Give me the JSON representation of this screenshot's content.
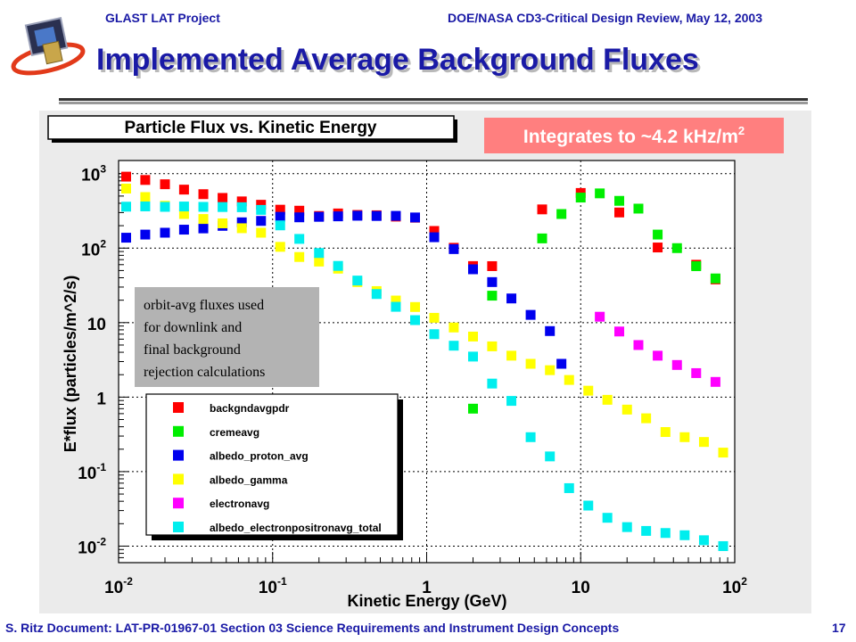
{
  "header": {
    "left": "GLAST LAT Project",
    "right": "DOE/NASA CD3-Critical Design Review, May 12, 2003"
  },
  "slide_title": "Implemented Average Background Fluxes",
  "footer": {
    "left": "S. Ritz  Document: LAT-PR-01967-01   Section 03 Science Requirements and Instrument Design Concepts",
    "page": "17"
  },
  "colors": {
    "title_blue": "#1a1aa6",
    "callout_bg": "#ff7f7f",
    "callout_text": "#ffffff",
    "note_bg": "#b3b3b3",
    "frame_bg": "#ebebeb"
  },
  "callout": {
    "text": "Integrates to ~4.2 kHz/m",
    "superscript": "2"
  },
  "note": {
    "lines": [
      "orbit-avg fluxes used",
      "for downlink and",
      "final background",
      "rejection calculations"
    ]
  },
  "chart_data": {
    "type": "scatter",
    "title": "Particle Flux vs. Kinetic Energy",
    "xlabel": "Kinetic Energy (GeV)",
    "ylabel": "E*flux (particles/m^2/s)",
    "x_scale": "log",
    "y_scale": "log",
    "xlim": [
      0.01,
      100
    ],
    "ylim": [
      0.006,
      1500
    ],
    "grid": "dashed, at decades",
    "legend_position": "bottom-left",
    "x_ticks": [
      {
        "value": 0.01,
        "base": "10",
        "exp": "-2"
      },
      {
        "value": 0.1,
        "base": "10",
        "exp": "-1"
      },
      {
        "value": 1,
        "base": "1",
        "exp": ""
      },
      {
        "value": 10,
        "base": "10",
        "exp": ""
      },
      {
        "value": 100,
        "base": "10",
        "exp": "2"
      }
    ],
    "y_ticks": [
      {
        "value": 0.01,
        "base": "10",
        "exp": "-2"
      },
      {
        "value": 0.1,
        "base": "10",
        "exp": "-1"
      },
      {
        "value": 1,
        "base": "1",
        "exp": ""
      },
      {
        "value": 10,
        "base": "10",
        "exp": ""
      },
      {
        "value": 100,
        "base": "10",
        "exp": "2"
      },
      {
        "value": 1000,
        "base": "10",
        "exp": "3"
      }
    ],
    "series": [
      {
        "name": "backgndavgpdr",
        "color": "#ff0000",
        "points": [
          [
            0.0112,
            911
          ],
          [
            0.0149,
            822
          ],
          [
            0.02,
            720
          ],
          [
            0.0266,
            610
          ],
          [
            0.0355,
            530
          ],
          [
            0.0473,
            472
          ],
          [
            0.0631,
            424
          ],
          [
            0.0841,
            382
          ],
          [
            0.112,
            328
          ],
          [
            0.149,
            318
          ],
          [
            0.2,
            270
          ],
          [
            0.266,
            292
          ],
          [
            0.355,
            279
          ],
          [
            0.473,
            276
          ],
          [
            0.631,
            265
          ],
          [
            0.841,
            256
          ],
          [
            1.12,
            170
          ],
          [
            1.5,
            101
          ],
          [
            2.0,
            57.4
          ],
          [
            2.66,
            57.3
          ],
          [
            5.62,
            331
          ],
          [
            10,
            550
          ],
          [
            17.8,
            301
          ],
          [
            31.6,
            102
          ],
          [
            56.2,
            59.8
          ],
          [
            75,
            38
          ]
        ]
      },
      {
        "name": "cremeavg",
        "color": "#00ee00",
        "points": [
          [
            2.0,
            0.7
          ],
          [
            2.66,
            23
          ],
          [
            5.62,
            135
          ],
          [
            7.5,
            287
          ],
          [
            10,
            477
          ],
          [
            13.3,
            543
          ],
          [
            17.8,
            431
          ],
          [
            23.7,
            339
          ],
          [
            31.6,
            152
          ],
          [
            42.2,
            100
          ],
          [
            56.2,
            57.2
          ],
          [
            75,
            39.2
          ]
        ]
      },
      {
        "name": "albedo_proton_avg",
        "color": "#0000ee",
        "points": [
          [
            0.0112,
            138
          ],
          [
            0.0149,
            152
          ],
          [
            0.02,
            161
          ],
          [
            0.0266,
            177
          ],
          [
            0.0355,
            184
          ],
          [
            0.0473,
            199
          ],
          [
            0.0631,
            222
          ],
          [
            0.0841,
            232
          ],
          [
            0.112,
            263
          ],
          [
            0.149,
            259
          ],
          [
            0.2,
            263
          ],
          [
            0.266,
            267
          ],
          [
            0.355,
            272
          ],
          [
            0.473,
            270
          ],
          [
            0.631,
            271
          ],
          [
            0.841,
            258
          ],
          [
            1.12,
            140
          ],
          [
            1.5,
            97
          ],
          [
            2.0,
            52
          ],
          [
            2.66,
            35
          ],
          [
            3.55,
            21.1
          ],
          [
            4.73,
            12.7
          ],
          [
            6.31,
            7.7
          ],
          [
            7.5,
            2.8
          ]
        ]
      },
      {
        "name": "albedo_gamma",
        "color": "#ffff00",
        "points": [
          [
            0.0112,
            630
          ],
          [
            0.0149,
            485
          ],
          [
            0.02,
            370
          ],
          [
            0.0266,
            287
          ],
          [
            0.0355,
            246
          ],
          [
            0.0473,
            215
          ],
          [
            0.0631,
            185
          ],
          [
            0.0841,
            161
          ],
          [
            0.112,
            104
          ],
          [
            0.149,
            76
          ],
          [
            0.2,
            66
          ],
          [
            0.266,
            53
          ],
          [
            0.355,
            35
          ],
          [
            0.473,
            26.5
          ],
          [
            0.631,
            19.8
          ],
          [
            0.841,
            16.2
          ],
          [
            1.12,
            11.6
          ],
          [
            1.5,
            8.6
          ],
          [
            2.0,
            6.5
          ],
          [
            2.66,
            4.8
          ],
          [
            3.55,
            3.6
          ],
          [
            4.73,
            2.8
          ],
          [
            6.31,
            2.3
          ],
          [
            8.41,
            1.7
          ],
          [
            11.2,
            1.22
          ],
          [
            14.9,
            0.92
          ],
          [
            20,
            0.68
          ],
          [
            26.6,
            0.52
          ],
          [
            35.5,
            0.34
          ],
          [
            47.3,
            0.29
          ],
          [
            63.1,
            0.25
          ],
          [
            84.1,
            0.18
          ]
        ]
      },
      {
        "name": "electronavg",
        "color": "#ff00ff",
        "points": [
          [
            13.3,
            12
          ],
          [
            17.8,
            7.6
          ],
          [
            23.7,
            5.0
          ],
          [
            31.6,
            3.6
          ],
          [
            42.2,
            2.7
          ],
          [
            56.2,
            2.1
          ],
          [
            75,
            1.6
          ]
        ]
      },
      {
        "name": "albedo_electronpositronavg_total",
        "color": "#00eeee",
        "points": [
          [
            0.0112,
            360
          ],
          [
            0.0149,
            363
          ],
          [
            0.02,
            358
          ],
          [
            0.0266,
            362
          ],
          [
            0.0355,
            358
          ],
          [
            0.0473,
            356
          ],
          [
            0.0631,
            354
          ],
          [
            0.0841,
            326
          ],
          [
            0.112,
            202
          ],
          [
            0.149,
            133
          ],
          [
            0.2,
            86
          ],
          [
            0.266,
            57.7
          ],
          [
            0.355,
            36.7
          ],
          [
            0.473,
            24.2
          ],
          [
            0.631,
            16.3
          ],
          [
            0.841,
            10.8
          ],
          [
            1.12,
            7.0
          ],
          [
            1.5,
            4.9
          ],
          [
            2.0,
            3.5
          ],
          [
            2.66,
            1.52
          ],
          [
            3.55,
            0.89
          ],
          [
            4.73,
            0.29
          ],
          [
            6.31,
            0.16
          ],
          [
            8.41,
            0.06
          ],
          [
            11.2,
            0.035
          ],
          [
            14.9,
            0.024
          ],
          [
            20,
            0.018
          ],
          [
            26.6,
            0.016
          ],
          [
            35.5,
            0.015
          ],
          [
            47.3,
            0.014
          ],
          [
            63.1,
            0.012
          ],
          [
            84.1,
            0.01
          ]
        ]
      }
    ]
  }
}
